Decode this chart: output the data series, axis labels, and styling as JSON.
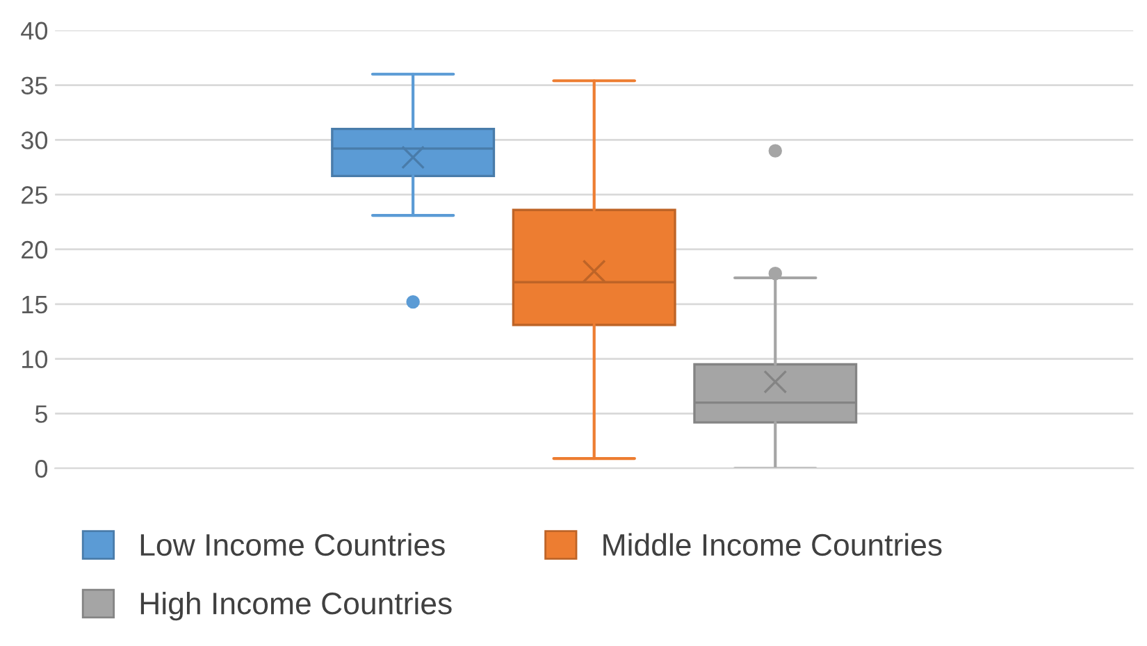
{
  "chart_data": {
    "type": "box",
    "categories": [
      null
    ],
    "ylim": [
      0,
      40
    ],
    "yticks": [
      0,
      5,
      10,
      15,
      20,
      25,
      30,
      35,
      40
    ],
    "grid": "y",
    "legend": "bottom left",
    "series": [
      {
        "name": "Low Income Countries",
        "color": "#5b9bd5",
        "boxes": [
          {
            "low": 23.1,
            "q1": 26.7,
            "median": 29.2,
            "q3": 31.0,
            "high": 36.0,
            "mean": 28.4,
            "outliers": [
              15.2
            ]
          }
        ]
      },
      {
        "name": "Middle Income Countries",
        "color": "#ed7d31",
        "boxes": [
          {
            "low": 0.9,
            "q1": 13.1,
            "median": 17.0,
            "q3": 23.6,
            "high": 35.4,
            "mean": 18.0
          }
        ]
      },
      {
        "name": "High Income Countries",
        "color": "#a5a5a5",
        "boxes": [
          {
            "low": 0.0,
            "q1": 4.2,
            "median": 6.0,
            "q3": 9.5,
            "high": 17.4,
            "mean": 7.9,
            "outliers": [
              17.8,
              29.0
            ]
          }
        ]
      }
    ]
  }
}
